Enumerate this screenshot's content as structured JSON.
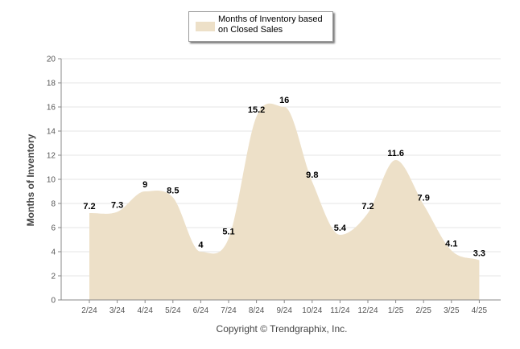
{
  "chart_data": {
    "type": "area",
    "categories": [
      "2/24",
      "3/24",
      "4/24",
      "5/24",
      "6/24",
      "7/24",
      "8/24",
      "9/24",
      "10/24",
      "11/24",
      "12/24",
      "1/25",
      "2/25",
      "3/25",
      "4/25"
    ],
    "series": [
      {
        "name": "Months of Inventory based on Closed Sales",
        "values": [
          7.2,
          7.3,
          9,
          8.5,
          4,
          5.1,
          15.2,
          16,
          9.8,
          5.4,
          7.2,
          11.6,
          7.9,
          4.1,
          3.3
        ]
      }
    ],
    "xlabel": "",
    "ylabel": "Months of Inventory",
    "ylim": [
      0,
      20
    ],
    "yticks": [
      0,
      2,
      4,
      6,
      8,
      10,
      12,
      14,
      16,
      18,
      20
    ],
    "grid": true,
    "legend": "top-center",
    "fill_color": "#ede0c8"
  },
  "footer": {
    "copyright": "Copyright © Trendgraphix, Inc."
  }
}
